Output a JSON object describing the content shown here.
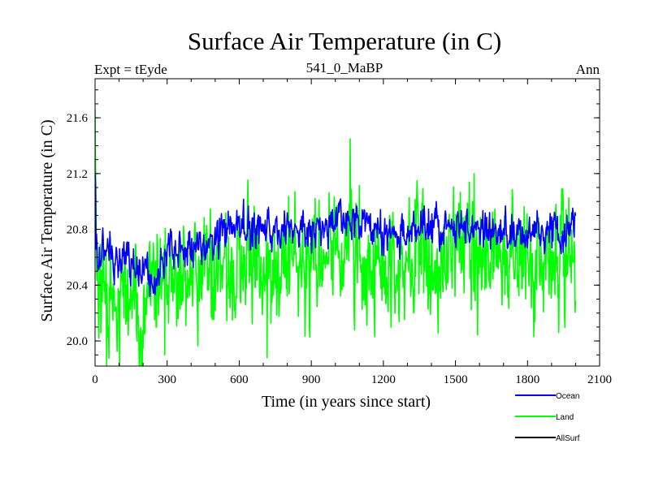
{
  "chart_data": {
    "type": "line",
    "title": "Surface Air Temperature (in C)",
    "subtitle_left": "Expt = tEyde",
    "subtitle_center": "541_0_MaBP",
    "subtitle_right": "Ann",
    "xlabel": "Time (in years since start)",
    "ylabel": "Surface Air Temperature (in C)",
    "xlim": [
      0,
      2100
    ],
    "ylim": [
      19.82,
      21.88
    ],
    "x_ticks": [
      0,
      300,
      600,
      900,
      1200,
      1500,
      1800,
      2100
    ],
    "x_tick_labels": [
      "0",
      "300",
      "600",
      "900",
      "1200",
      "1500",
      "1800",
      "2100"
    ],
    "y_ticks": [
      20.0,
      20.4,
      20.8,
      21.2,
      21.6
    ],
    "y_tick_labels": [
      "20.0",
      "20.4",
      "20.8",
      "21.2",
      "21.6"
    ],
    "x_range": [
      0,
      2000
    ],
    "series": [
      {
        "name": "Ocean",
        "color": "#0000ff",
        "points": [
          [
            0,
            21.05
          ],
          [
            5,
            20.7
          ],
          [
            15,
            20.55
          ],
          [
            30,
            20.6
          ],
          [
            50,
            20.7
          ],
          [
            75,
            20.6
          ],
          [
            100,
            20.55
          ],
          [
            130,
            20.62
          ],
          [
            160,
            20.52
          ],
          [
            190,
            20.5
          ],
          [
            220,
            20.48
          ],
          [
            250,
            20.4
          ],
          [
            270,
            20.55
          ],
          [
            300,
            20.62
          ],
          [
            350,
            20.68
          ],
          [
            400,
            20.66
          ],
          [
            450,
            20.68
          ],
          [
            500,
            20.72
          ],
          [
            550,
            20.78
          ],
          [
            600,
            20.82
          ],
          [
            650,
            20.78
          ],
          [
            700,
            20.82
          ],
          [
            750,
            20.8
          ],
          [
            800,
            20.82
          ],
          [
            850,
            20.78
          ],
          [
            900,
            20.8
          ],
          [
            950,
            20.82
          ],
          [
            1000,
            20.86
          ],
          [
            1050,
            20.9
          ],
          [
            1100,
            20.85
          ],
          [
            1150,
            20.8
          ],
          [
            1200,
            20.76
          ],
          [
            1250,
            20.72
          ],
          [
            1300,
            20.78
          ],
          [
            1350,
            20.8
          ],
          [
            1400,
            20.82
          ],
          [
            1450,
            20.8
          ],
          [
            1500,
            20.82
          ],
          [
            1550,
            20.85
          ],
          [
            1600,
            20.8
          ],
          [
            1650,
            20.78
          ],
          [
            1700,
            20.8
          ],
          [
            1750,
            20.76
          ],
          [
            1800,
            20.78
          ],
          [
            1850,
            20.76
          ],
          [
            1900,
            20.78
          ],
          [
            1950,
            20.76
          ],
          [
            2000,
            20.88
          ]
        ],
        "noise_amplitude": 0.1
      },
      {
        "name": "Land",
        "color": "#00ff00",
        "points": [
          [
            0,
            21.75
          ],
          [
            5,
            20.4
          ],
          [
            20,
            20.35
          ],
          [
            50,
            20.2
          ],
          [
            80,
            20.2
          ],
          [
            110,
            20.3
          ],
          [
            150,
            20.28
          ],
          [
            180,
            20.25
          ],
          [
            200,
            20.3
          ],
          [
            240,
            20.3
          ],
          [
            270,
            20.35
          ],
          [
            300,
            20.4
          ],
          [
            350,
            20.45
          ],
          [
            400,
            20.5
          ],
          [
            450,
            20.5
          ],
          [
            500,
            20.55
          ],
          [
            550,
            20.55
          ],
          [
            600,
            20.58
          ],
          [
            650,
            20.55
          ],
          [
            700,
            20.55
          ],
          [
            750,
            20.58
          ],
          [
            800,
            20.55
          ],
          [
            850,
            20.6
          ],
          [
            900,
            20.6
          ],
          [
            950,
            20.6
          ],
          [
            1000,
            20.62
          ],
          [
            1050,
            20.65
          ],
          [
            1100,
            20.6
          ],
          [
            1150,
            20.55
          ],
          [
            1200,
            20.5
          ],
          [
            1250,
            20.55
          ],
          [
            1300,
            20.6
          ],
          [
            1350,
            20.65
          ],
          [
            1400,
            20.62
          ],
          [
            1450,
            20.6
          ],
          [
            1500,
            20.62
          ],
          [
            1550,
            20.65
          ],
          [
            1600,
            20.6
          ],
          [
            1650,
            20.58
          ],
          [
            1700,
            20.6
          ],
          [
            1750,
            20.55
          ],
          [
            1800,
            20.58
          ],
          [
            1850,
            20.55
          ],
          [
            1900,
            20.56
          ],
          [
            1950,
            20.55
          ],
          [
            2000,
            20.6
          ]
        ],
        "noise_amplitude": 0.3,
        "annotated_extremes": [
          [
            48,
            19.82
          ],
          [
            185,
            19.82
          ],
          [
            255,
            20.1
          ],
          [
            290,
            19.9
          ],
          [
            716,
            19.88
          ],
          [
            1062,
            21.45
          ],
          [
            1578,
            21.2
          ],
          [
            1930,
            20.06
          ]
        ]
      },
      {
        "name": "AllSurf",
        "color": "#000000",
        "points": []
      }
    ],
    "legend": {
      "position": "bottom-right",
      "entries": [
        "Ocean",
        "Land",
        "AllSurf"
      ]
    }
  }
}
